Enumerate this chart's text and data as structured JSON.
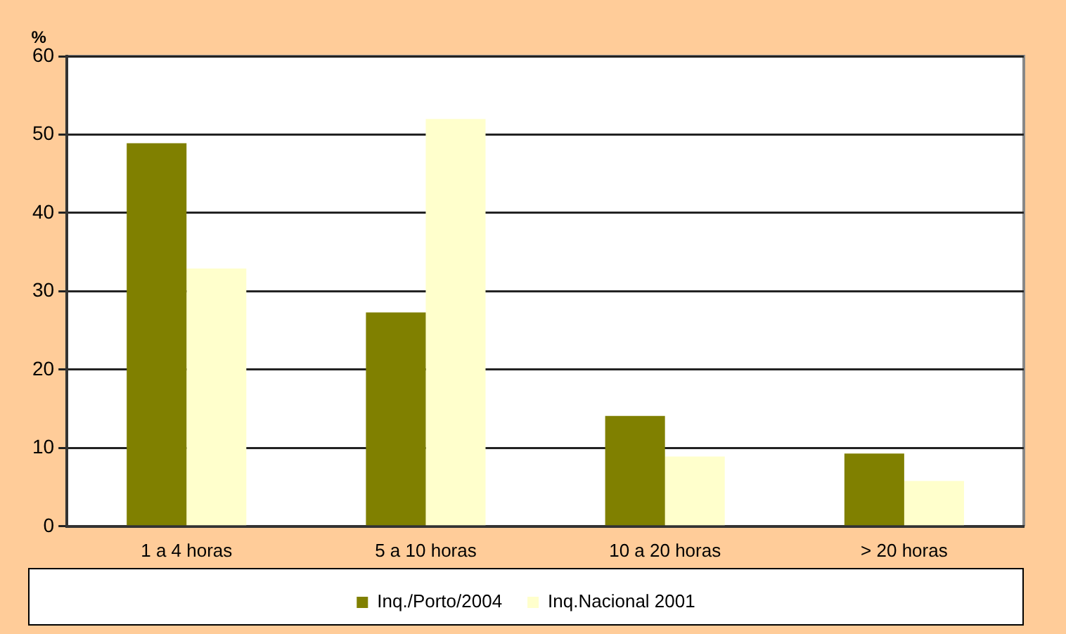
{
  "chart_data": {
    "type": "bar",
    "ylabel": "%",
    "categories": [
      "1 a 4 horas",
      "5 a 10 horas",
      "10 a 20 horas",
      "> 20 horas"
    ],
    "series": [
      {
        "name": "Inq./Porto/2004",
        "color": "#808000",
        "values": [
          48.9,
          27.3,
          14.1,
          9.3
        ]
      },
      {
        "name": "Inq.Nacional 2001",
        "color": "#ffffcc",
        "values": [
          32.9,
          52.0,
          8.9,
          5.8
        ]
      }
    ],
    "ylim": [
      0,
      60
    ],
    "yticks": [
      0,
      10,
      20,
      30,
      40,
      50,
      60
    ],
    "grid": "y",
    "legend": "bottom"
  }
}
